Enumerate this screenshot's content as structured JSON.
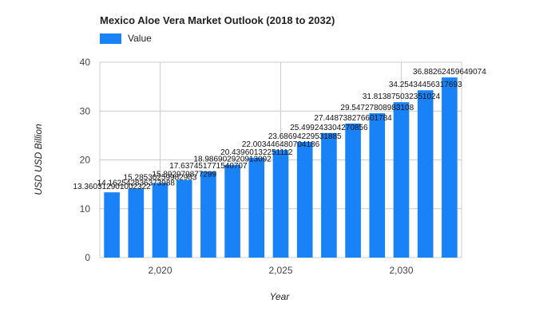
{
  "chart_data": {
    "type": "bar",
    "title": "Mexico Aloe Vera Market Outlook (2018 to 2032)",
    "xlabel": "Year",
    "ylabel": "USD USD Billion",
    "legend": {
      "position": "top-left",
      "entries": [
        "Value"
      ]
    },
    "series": [
      {
        "name": "Value",
        "color": "#1a82f7",
        "values": [
          13.360312901002322,
          14.162542836373987,
          15.285302599829832,
          15.892979877299,
          17.637451771540707,
          18.986902920913092,
          20.43960132251112,
          22.003446480704184,
          23.686942295318854,
          25.499243304270856,
          27.448738276601784,
          29.54727808983108,
          31.813875032351024,
          34.25434456317693,
          36.88262459649074
        ]
      }
    ],
    "x": [
      2018,
      2019,
      2020,
      2021,
      2022,
      2023,
      2024,
      2025,
      2026,
      2027,
      2028,
      2029,
      2030,
      2031,
      2032
    ],
    "data_labels": [
      "13.360312901002322",
      "14.162542836373988",
      "15.28530259982983",
      "15.892979877299",
      "17.637451771540707",
      "18.986902920913092",
      "20.43960132251112",
      "22.003446480704186",
      "23.68694229531885",
      "25.499243304270856",
      "27.448738276601784",
      "29.54727808983108",
      "31.813875032351024",
      "34.25434456317693",
      "36.88262459649074"
    ],
    "x_ticks": [
      2020,
      2025,
      2030
    ],
    "x_tick_labels": [
      "2,020",
      "2,025",
      "2,030"
    ],
    "y_ticks": [
      0,
      10,
      20,
      30,
      40
    ],
    "ylim": [
      0,
      40
    ],
    "grid": true
  }
}
